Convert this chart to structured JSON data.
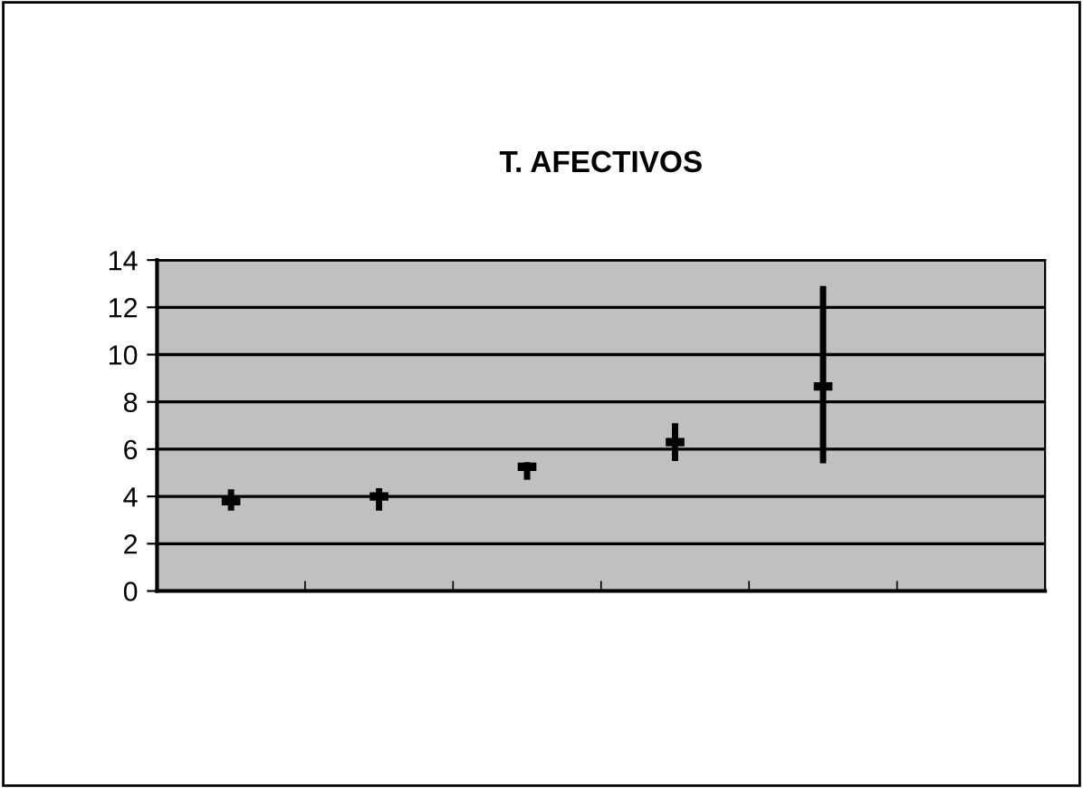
{
  "chart_data": {
    "type": "scatter",
    "title": "T. AFECTIVOS",
    "categories": [
      null,
      null,
      null,
      null,
      null,
      null
    ],
    "values": [
      3.8,
      4.0,
      5.25,
      6.3,
      8.65,
      null
    ],
    "errors": [
      [
        3.4,
        4.3
      ],
      [
        3.4,
        4.35
      ],
      [
        4.7,
        5.45
      ],
      [
        5.5,
        7.1
      ],
      [
        5.4,
        12.9
      ],
      null
    ],
    "color": "#000000",
    "ylim": [
      0,
      14
    ],
    "yticks": [
      0,
      2,
      4,
      6,
      8,
      10,
      12,
      14
    ],
    "grid": "y",
    "legend": false
  }
}
